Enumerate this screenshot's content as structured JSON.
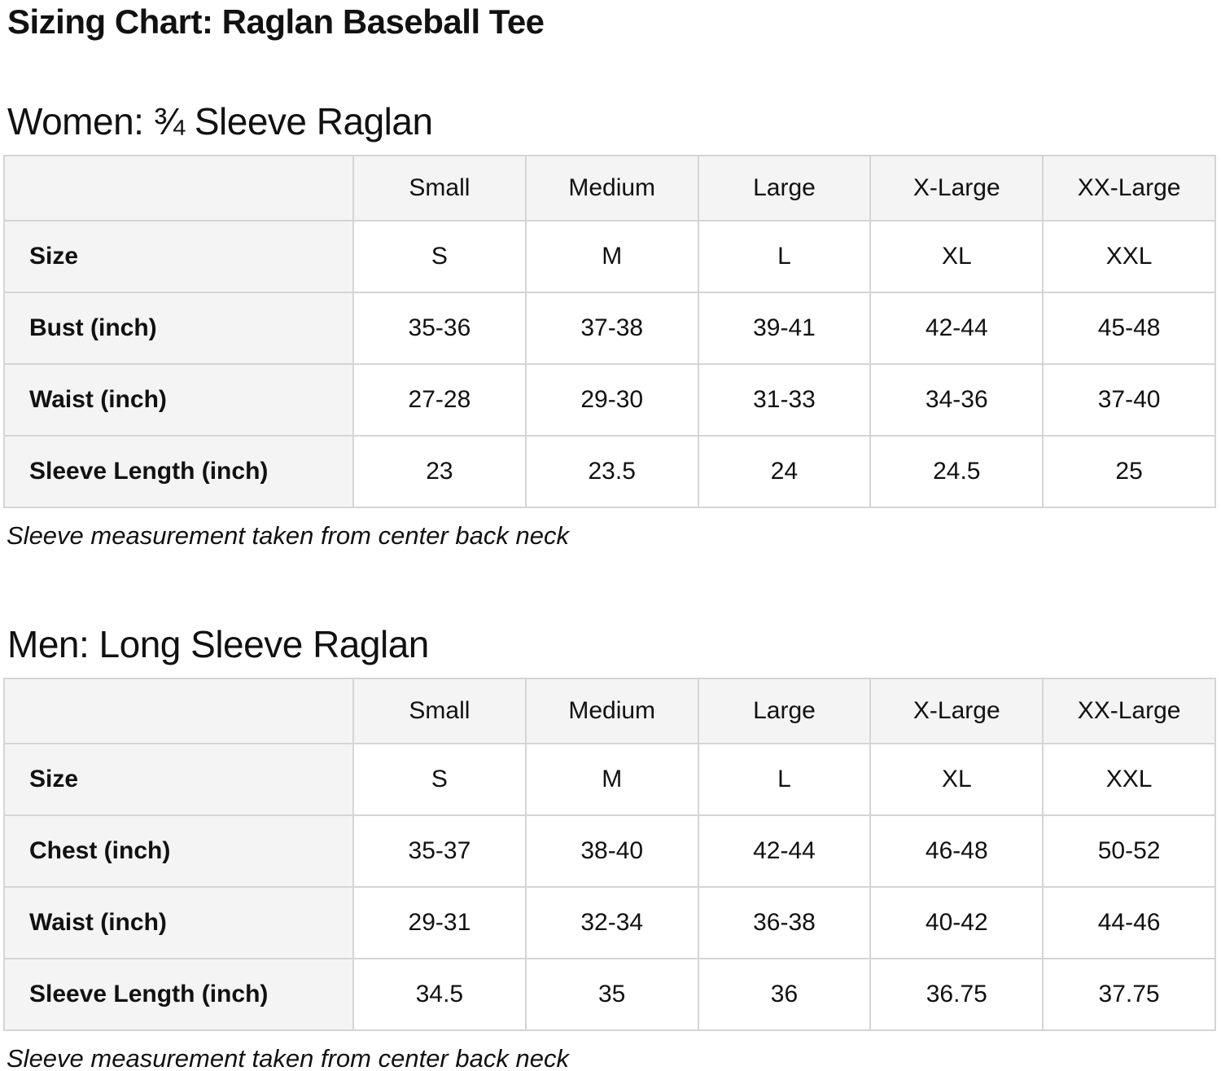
{
  "page": {
    "title": "Sizing Chart: Raglan Baseball Tee"
  },
  "colors": {
    "background": "#ffffff",
    "text": "#111111",
    "cell_fill": "#f4f4f4",
    "border": "#d5d5d5"
  },
  "sections": [
    {
      "heading": "Women: ¾ Sleeve Raglan",
      "note": "Sleeve measurement taken from center back neck",
      "table": {
        "column_headers": [
          "",
          "Small",
          "Medium",
          "Large",
          "X-Large",
          "XX-Large"
        ],
        "rows": [
          {
            "label": "Size",
            "values": [
              "S",
              "M",
              "L",
              "XL",
              "XXL"
            ]
          },
          {
            "label": "Bust (inch)",
            "values": [
              "35-36",
              "37-38",
              "39-41",
              "42-44",
              "45-48"
            ]
          },
          {
            "label": "Waist (inch)",
            "values": [
              "27-28",
              "29-30",
              "31-33",
              "34-36",
              "37-40"
            ]
          },
          {
            "label": "Sleeve Length (inch)",
            "values": [
              "23",
              "23.5",
              "24",
              "24.5",
              "25"
            ]
          }
        ]
      }
    },
    {
      "heading": "Men: Long Sleeve Raglan",
      "note": "Sleeve measurement taken from center back neck",
      "table": {
        "column_headers": [
          "",
          "Small",
          "Medium",
          "Large",
          "X-Large",
          "XX-Large"
        ],
        "rows": [
          {
            "label": "Size",
            "values": [
              "S",
              "M",
              "L",
              "XL",
              "XXL"
            ]
          },
          {
            "label": "Chest (inch)",
            "values": [
              "35-37",
              "38-40",
              "42-44",
              "46-48",
              "50-52"
            ]
          },
          {
            "label": "Waist (inch)",
            "values": [
              "29-31",
              "32-34",
              "36-38",
              "40-42",
              "44-46"
            ]
          },
          {
            "label": "Sleeve Length (inch)",
            "values": [
              "34.5",
              "35",
              "36",
              "36.75",
              "37.75"
            ]
          }
        ]
      }
    }
  ]
}
